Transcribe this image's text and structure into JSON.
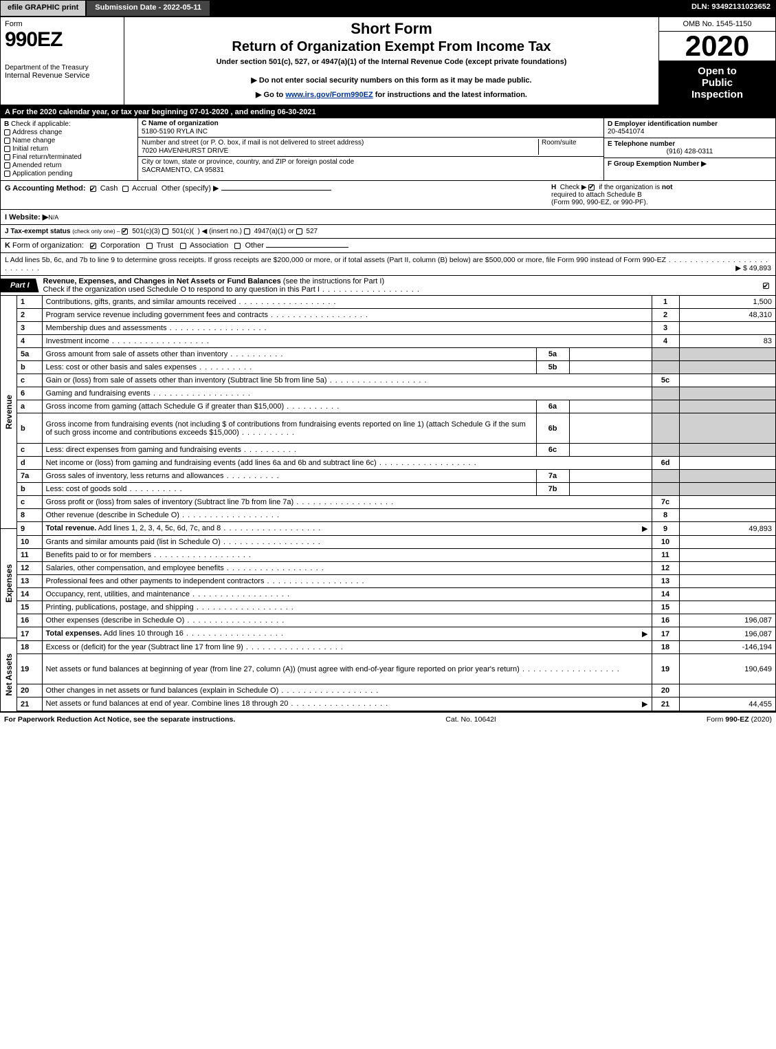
{
  "topbar": {
    "efile_btn": "efile GRAPHIC print",
    "submission": "Submission Date - 2022-05-11",
    "dln": "DLN: 93492131023652"
  },
  "header": {
    "form_word": "Form",
    "form_number": "990EZ",
    "dept": "Department of the Treasury",
    "irs": "Internal Revenue Service",
    "short_form": "Short Form",
    "return_title": "Return of Organization Exempt From Income Tax",
    "under": "Under section 501(c), 527, or 4947(a)(1) of the Internal Revenue Code (except private foundations)",
    "warn": "▶ Do not enter social security numbers on this form as it may be made public.",
    "goto_pre": "▶ Go to ",
    "goto_link": "www.irs.gov/Form990EZ",
    "goto_post": " for instructions and the latest information.",
    "omb": "OMB No. 1545-1150",
    "year": "2020",
    "open1": "Open to",
    "open2": "Public",
    "open3": "Inspection"
  },
  "lineA": "A For the 2020 calendar year, or tax year beginning 07-01-2020 , and ending 06-30-2021",
  "boxB": {
    "title": "B",
    "label": "Check if applicable:",
    "items": [
      "Address change",
      "Name change",
      "Initial return",
      "Final return/terminated",
      "Amended return",
      "Application pending"
    ]
  },
  "boxC": {
    "c_label": "C Name of organization",
    "c_val": "5180-5190 RYLA INC",
    "addr_label": "Number and street (or P. O. box, if mail is not delivered to street address)",
    "addr_val": "7020 HAVENHURST DRIVE",
    "room": "Room/suite",
    "city_label": "City or town, state or province, country, and ZIP or foreign postal code",
    "city_val": "SACRAMENTO, CA  95831"
  },
  "boxD": {
    "d_label": "D Employer identification number",
    "d_val": "20-4541074",
    "e_label": "E Telephone number",
    "e_val": "(916) 428-0311",
    "f_label": "F Group Exemption Number  ▶"
  },
  "lineG": {
    "g_label": "G Accounting Method:",
    "cash": "Cash",
    "accrual": "Accrual",
    "other": "Other (specify) ▶",
    "h_label": "H",
    "h_text1": "Check ▶",
    "h_text2": "if the organization is",
    "h_not": "not",
    "h_text3": "required to attach Schedule B",
    "h_text4": "(Form 990, 990-EZ, or 990-PF)."
  },
  "lineI": {
    "label": "I Website: ▶",
    "val": "N/A"
  },
  "lineJ": "J Tax-exempt status (check only one) –  ☑ 501(c)(3)  ◯ 501(c)(  ) ◀ (insert no.)  ◯ 4947(a)(1) or  ◯ 527",
  "lineK": "K Form of organization:   ☑ Corporation   ◯ Trust   ◯ Association   ◯ Other",
  "lineL": {
    "text": "L Add lines 5b, 6c, and 7b to line 9 to determine gross receipts. If gross receipts are $200,000 or more, or if total assets (Part II, column (B) below) are $500,000 or more, file Form 990 instead of Form 990-EZ",
    "amt": "▶ $ 49,893"
  },
  "part1": {
    "tab": "Part I",
    "title": "Revenue, Expenses, and Changes in Net Assets or Fund Balances",
    "inst": "(see the instructions for Part I)",
    "check": "Check if the organization used Schedule O to respond to any question in this Part I"
  },
  "side": {
    "rev": "Revenue",
    "exp": "Expenses",
    "na": "Net Assets"
  },
  "rows": [
    {
      "n": "1",
      "d": "Contributions, gifts, grants, and similar amounts received",
      "rn": "1",
      "rv": "1,500"
    },
    {
      "n": "2",
      "d": "Program service revenue including government fees and contracts",
      "rn": "2",
      "rv": "48,310"
    },
    {
      "n": "3",
      "d": "Membership dues and assessments",
      "rn": "3",
      "rv": ""
    },
    {
      "n": "4",
      "d": "Investment income",
      "rn": "4",
      "rv": "83"
    },
    {
      "n": "5a",
      "d": "Gross amount from sale of assets other than inventory",
      "sub": "5a",
      "subv": "",
      "gray": true
    },
    {
      "n": "b",
      "d": "Less: cost or other basis and sales expenses",
      "sub": "5b",
      "subv": "",
      "gray": true
    },
    {
      "n": "c",
      "d": "Gain or (loss) from sale of assets other than inventory (Subtract line 5b from line 5a)",
      "rn": "5c",
      "rv": ""
    },
    {
      "n": "6",
      "d": "Gaming and fundraising events",
      "gray": true,
      "noval": true
    },
    {
      "n": "a",
      "d": "Gross income from gaming (attach Schedule G if greater than $15,000)",
      "sub": "6a",
      "subv": "",
      "gray": true
    },
    {
      "n": "b",
      "d": "Gross income from fundraising events (not including $                    of contributions from fundraising events reported on line 1) (attach Schedule G if the sum of such gross income and contributions exceeds $15,000)",
      "sub": "6b",
      "subv": "",
      "gray": true,
      "tall": true
    },
    {
      "n": "c",
      "d": "Less: direct expenses from gaming and fundraising events",
      "sub": "6c",
      "subv": "",
      "gray": true
    },
    {
      "n": "d",
      "d": "Net income or (loss) from gaming and fundraising events (add lines 6a and 6b and subtract line 6c)",
      "rn": "6d",
      "rv": ""
    },
    {
      "n": "7a",
      "d": "Gross sales of inventory, less returns and allowances",
      "sub": "7a",
      "subv": "",
      "gray": true
    },
    {
      "n": "b",
      "d": "Less: cost of goods sold",
      "sub": "7b",
      "subv": "",
      "gray": true
    },
    {
      "n": "c",
      "d": "Gross profit or (loss) from sales of inventory (Subtract line 7b from line 7a)",
      "rn": "7c",
      "rv": ""
    },
    {
      "n": "8",
      "d": "Other revenue (describe in Schedule O)",
      "rn": "8",
      "rv": ""
    },
    {
      "n": "9",
      "d": "Total revenue. Add lines 1, 2, 3, 4, 5c, 6d, 7c, and 8",
      "rn": "9",
      "rv": "49,893",
      "bold": true,
      "arr": true
    }
  ],
  "rows_exp": [
    {
      "n": "10",
      "d": "Grants and similar amounts paid (list in Schedule O)",
      "rn": "10",
      "rv": ""
    },
    {
      "n": "11",
      "d": "Benefits paid to or for members",
      "rn": "11",
      "rv": ""
    },
    {
      "n": "12",
      "d": "Salaries, other compensation, and employee benefits",
      "rn": "12",
      "rv": ""
    },
    {
      "n": "13",
      "d": "Professional fees and other payments to independent contractors",
      "rn": "13",
      "rv": ""
    },
    {
      "n": "14",
      "d": "Occupancy, rent, utilities, and maintenance",
      "rn": "14",
      "rv": ""
    },
    {
      "n": "15",
      "d": "Printing, publications, postage, and shipping",
      "rn": "15",
      "rv": ""
    },
    {
      "n": "16",
      "d": "Other expenses (describe in Schedule O)",
      "rn": "16",
      "rv": "196,087"
    },
    {
      "n": "17",
      "d": "Total expenses. Add lines 10 through 16",
      "rn": "17",
      "rv": "196,087",
      "bold": true,
      "arr": true
    }
  ],
  "rows_na": [
    {
      "n": "18",
      "d": "Excess or (deficit) for the year (Subtract line 17 from line 9)",
      "rn": "18",
      "rv": "-146,194"
    },
    {
      "n": "19",
      "d": "Net assets or fund balances at beginning of year (from line 27, column (A)) (must agree with end-of-year figure reported on prior year's return)",
      "rn": "19",
      "rv": "190,649",
      "tall": true
    },
    {
      "n": "20",
      "d": "Other changes in net assets or fund balances (explain in Schedule O)",
      "rn": "20",
      "rv": ""
    },
    {
      "n": "21",
      "d": "Net assets or fund balances at end of year. Combine lines 18 through 20",
      "rn": "21",
      "rv": "44,455",
      "arr": true
    }
  ],
  "footer": {
    "l": "For Paperwork Reduction Act Notice, see the separate instructions.",
    "c": "Cat. No. 10642I",
    "r": "Form 990-EZ (2020)"
  },
  "colors": {
    "black": "#000000",
    "white": "#ffffff",
    "gray_btn": "#cccccc",
    "gray_cell": "#d0d0d0",
    "dark_gray": "#444444",
    "link": "#003399"
  }
}
